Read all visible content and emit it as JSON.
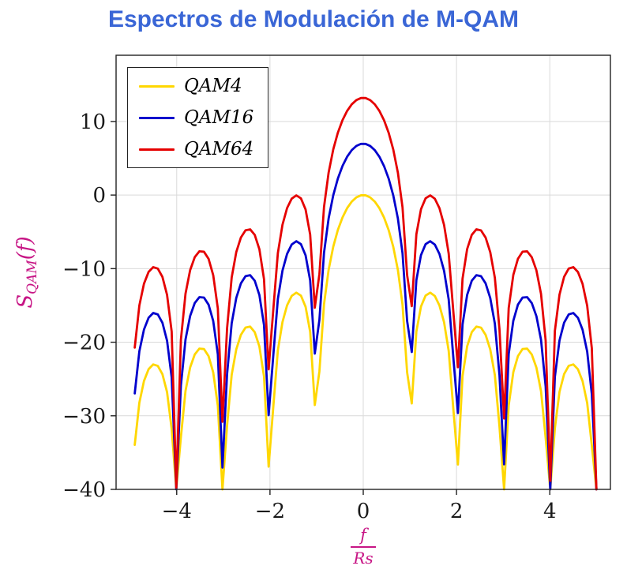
{
  "chart_data": {
    "type": "line",
    "title": "Espectros de Modulación de M-QAM",
    "ylabel": {
      "base": "S",
      "subscript": "QAM",
      "suffix": "(f)"
    },
    "xlabel_numerator": "f",
    "xlabel_denominator": "Rs",
    "model": "y(x) = peak_db + 10*log10((sin(pi*x)/(pi*x))^2), sinc-squared power spectrum in dB, clipped at ymin",
    "x_start": -4.9,
    "x_step": 0.099,
    "n_samples": 101,
    "xlim": [
      -5.3,
      5.3
    ],
    "ylim": [
      -40,
      19
    ],
    "xticks": [
      -4,
      -2,
      0,
      2,
      4
    ],
    "yticks": [
      10,
      0,
      -10,
      -20,
      -30,
      -40
    ],
    "grid": true,
    "legend_position": "top-left",
    "series": [
      {
        "name": "QAM4",
        "color": "#FFD700",
        "peak_db": 0
      },
      {
        "name": "QAM16",
        "color": "#0000CD",
        "peak_db": 6.99
      },
      {
        "name": "QAM64",
        "color": "#E50000",
        "peak_db": 13.22
      }
    ],
    "key_points": {
      "main_lobe_peaks_db": {
        "QAM4": 0,
        "QAM16": 6.99,
        "QAM64": 13.22
      },
      "nulls_at": [
        -4,
        -3,
        -2,
        -1,
        1,
        2,
        3,
        4,
        5
      ],
      "first_sidelobe_db_relative": -13.3
    },
    "style": {
      "title_color": "#3A66D6",
      "axis_label_color": "#C71585",
      "grid_color": "#D9D9D9",
      "frame_color": "#222222",
      "tick_color": "#1A1A1A",
      "plot_bg": "#FFFFFF"
    }
  }
}
